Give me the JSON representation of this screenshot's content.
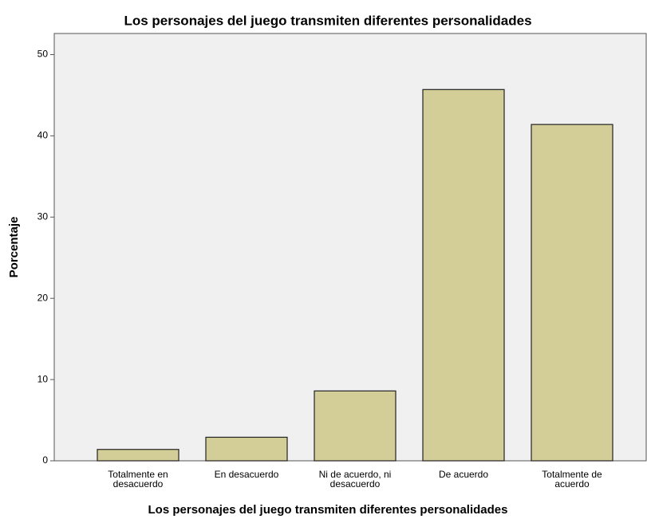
{
  "chart_data": {
    "type": "bar",
    "title": "Los personajes del juego transmiten diferentes personalidades",
    "x_label": "Los personajes del juego transmiten diferentes personalidades",
    "y_label": "Porcentaje",
    "categories": [
      "Totalmente en\ndesacuerdo",
      "En desacuerdo",
      "Ni de acuerdo, ni\ndesacuerdo",
      "De acuerdo",
      "Totalmente de\nacuerdo"
    ],
    "values": [
      1.4,
      2.9,
      8.6,
      45.7,
      41.4
    ],
    "color": "#d3ce97",
    "ylim": [
      0,
      52.6
    ],
    "yticks": [
      0,
      10,
      20,
      30,
      40,
      50
    ],
    "grid": false
  }
}
